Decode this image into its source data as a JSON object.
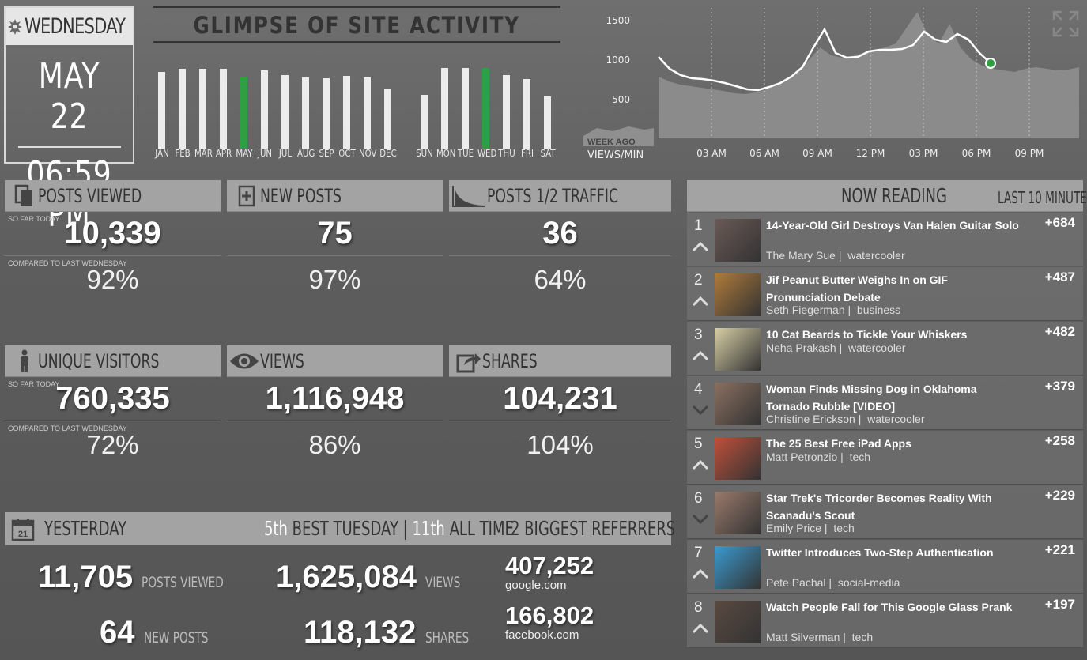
{
  "date": {
    "day": "WEDNESDAY",
    "date": "MAY 22",
    "time": "06:59 PM"
  },
  "glimpse": {
    "title": "GLIMPSE OF SITE ACTIVITY",
    "months": [
      {
        "label": "JAN",
        "value": 0.88
      },
      {
        "label": "FEB",
        "value": 0.92
      },
      {
        "label": "MAR",
        "value": 0.92
      },
      {
        "label": "APR",
        "value": 0.92
      },
      {
        "label": "MAY",
        "value": 0.83,
        "highlight": true
      },
      {
        "label": "JUN",
        "value": 0.9
      },
      {
        "label": "JUL",
        "value": 0.85
      },
      {
        "label": "AUG",
        "value": 0.82
      },
      {
        "label": "SEP",
        "value": 0.81
      },
      {
        "label": "OCT",
        "value": 0.84
      },
      {
        "label": "NOV",
        "value": 0.82
      },
      {
        "label": "DEC",
        "value": 0.69
      }
    ],
    "days": [
      {
        "label": "SUN",
        "value": 0.62
      },
      {
        "label": "MON",
        "value": 0.93
      },
      {
        "label": "TUE",
        "value": 0.93
      },
      {
        "label": "WED",
        "value": 0.93,
        "highlight": true
      },
      {
        "label": "THU",
        "value": 0.85
      },
      {
        "label": "FRI",
        "value": 0.8
      },
      {
        "label": "SAT",
        "value": 0.6
      }
    ]
  },
  "chart_data": {
    "type": "line",
    "y_ticks": [
      "1500",
      "1000",
      "500"
    ],
    "x_ticks": [
      "03 AM",
      "06 AM",
      "09 AM",
      "12 PM",
      "03 PM",
      "06 PM",
      "09 PM"
    ],
    "ylim": [
      0,
      1650
    ],
    "today_values": [
      1030,
      880,
      800,
      760,
      750,
      730,
      700,
      660,
      620,
      610,
      650,
      700,
      780,
      900,
      1150,
      1380,
      1080,
      1020,
      1030,
      1100,
      1120,
      1120,
      1130,
      1180,
      1350,
      1250,
      1220,
      1320,
      1250,
      1080,
      950
    ],
    "week_ago_values": [
      780,
      720,
      680,
      660,
      640,
      620,
      600,
      570,
      560,
      580,
      620,
      680,
      760,
      850,
      1000,
      1150,
      1050,
      1020,
      1040,
      1080,
      1100,
      1150,
      1200,
      1400,
      1600,
      1300,
      1200,
      1450,
      1150,
      1000,
      920,
      880,
      860,
      840,
      880,
      900,
      880,
      860,
      870,
      900
    ],
    "legend_week_ago": "WEEK AGO",
    "legend_views": "VIEWS/MIN"
  },
  "tiles": [
    {
      "id": "posts-viewed",
      "label": "POSTS VIEWED",
      "value": "10,339",
      "pct": "92%",
      "so_far": "SO FAR TODAY",
      "compared": "COMPARED TO LAST WEDNESDAY"
    },
    {
      "id": "new-posts",
      "label": "NEW POSTS",
      "value": "75",
      "pct": "97%"
    },
    {
      "id": "posts-half-traffic",
      "label": "POSTS 1/2 TRAFFIC",
      "value": "36",
      "pct": "64%"
    },
    {
      "id": "unique-visitors",
      "label": "UNIQUE VISITORS",
      "value": "760,335",
      "pct": "72%",
      "so_far": "SO FAR TODAY",
      "compared": "COMPARED TO LAST WEDNESDAY"
    },
    {
      "id": "views",
      "label": "VIEWS",
      "value": "1,116,948",
      "pct": "86%"
    },
    {
      "id": "shares",
      "label": "SHARES",
      "value": "104,231",
      "pct": "104%"
    }
  ],
  "yesterday": {
    "label": "YESTERDAY",
    "icon_day": "21",
    "rank_1": "5th",
    "rank_1_text": "BEST TUESDAY",
    "rank_sep": "|",
    "rank_2": "11th",
    "rank_2_text": "ALL TIME",
    "referrers_label": "2 BIGGEST REFERRERS",
    "posts_viewed": "11,705",
    "posts_viewed_label": "POSTS VIEWED",
    "views": "1,625,084",
    "views_label": "VIEWS",
    "new_posts": "64",
    "new_posts_label": "NEW POSTS",
    "shares": "118,132",
    "shares_label": "SHARES",
    "referrers": [
      {
        "value": "407,252",
        "domain": "google.com"
      },
      {
        "value": "166,802",
        "domain": "facebook.com"
      }
    ]
  },
  "now_reading": {
    "title": "NOW READING",
    "subtitle": "LAST 10 MINUTES",
    "items": [
      {
        "rank": "1",
        "title": "14-Year-Old Girl Destroys Van Halen Guitar Solo",
        "author": "The Mary Sue",
        "section": "watercooler",
        "score": "+684",
        "trend": "up",
        "thumb": "#6a5a55"
      },
      {
        "rank": "2",
        "title": "Jif Peanut Butter Weighs In on GIF Pronunciation Debate",
        "author": "Seth Fiegerman",
        "section": "business",
        "score": "+487",
        "trend": "up",
        "thumb": "#b07a3a"
      },
      {
        "rank": "3",
        "title": "10 Cat Beards to Tickle Your Whiskers",
        "author": "Neha Prakash",
        "section": "watercooler",
        "score": "+482",
        "trend": "up",
        "thumb": "#d8cfa5"
      },
      {
        "rank": "4",
        "title": "Woman Finds Missing Dog in Oklahoma Tornado Rubble [VIDEO]",
        "author": "Christine Erickson",
        "section": "watercooler",
        "score": "+379",
        "trend": "down",
        "thumb": "#8a7060"
      },
      {
        "rank": "5",
        "title": "The 25 Best Free iPad Apps",
        "author": "Matt Petronzio",
        "section": "tech",
        "score": "+258",
        "trend": "up",
        "thumb": "#c0503a"
      },
      {
        "rank": "6",
        "title": "Star Trek's Tricorder Becomes Reality With Scanadu's Scout",
        "author": "Emily Price",
        "section": "tech",
        "score": "+229",
        "trend": "down",
        "thumb": "#9a7a6a"
      },
      {
        "rank": "7",
        "title": "Twitter Introduces Two-Step Authentication",
        "author": "Pete Pachal",
        "section": "social-media",
        "score": "+221",
        "trend": "up",
        "thumb": "#3a9ad0"
      },
      {
        "rank": "8",
        "title": "Watch People Fall for This Google Glass Prank",
        "author": "Matt Silverman",
        "section": "tech",
        "score": "+197",
        "trend": "up",
        "thumb": "#5a4a40"
      }
    ]
  }
}
